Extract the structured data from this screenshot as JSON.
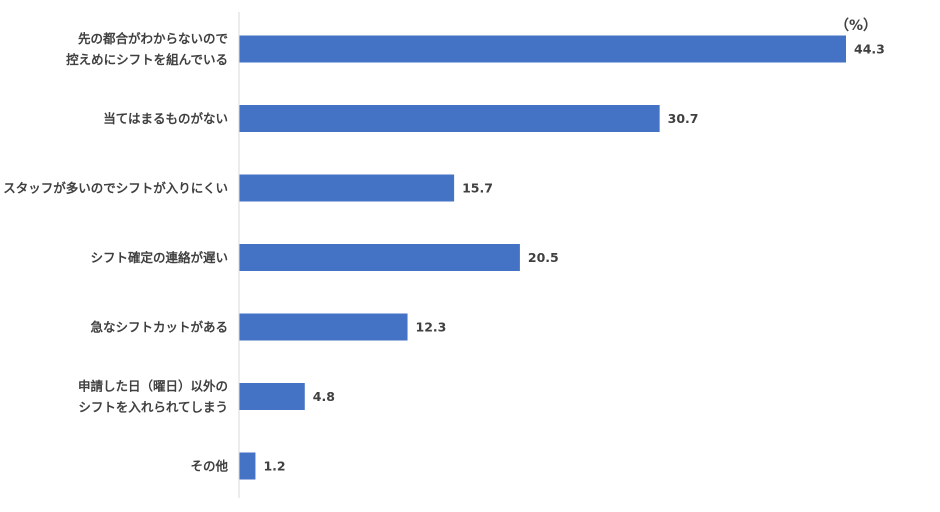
{
  "chart_data": {
    "type": "bar",
    "orientation": "horizontal",
    "unit": "（%）",
    "categories": [
      [
        "先の都合がわからないので",
        "控えめにシフトを組んでいる"
      ],
      [
        "当てはまるものがない"
      ],
      [
        "スタッフが多いのでシフトが入りにくい"
      ],
      [
        "シフト確定の連絡が遅い"
      ],
      [
        "急なシフトカットがある"
      ],
      [
        "申請した日（曜日）以外の",
        "シフトを入れられてしまう"
      ],
      [
        "その他"
      ]
    ],
    "values": [
      44.3,
      30.7,
      15.7,
      20.5,
      12.3,
      4.8,
      1.2
    ],
    "value_labels": [
      "44.3",
      "30.7",
      "15.7",
      "20.5",
      "12.3",
      "4.8",
      "1.2"
    ],
    "xlim": [
      0,
      44.3
    ],
    "bar_color": "#4472c4",
    "grid": false,
    "legend": "none"
  }
}
